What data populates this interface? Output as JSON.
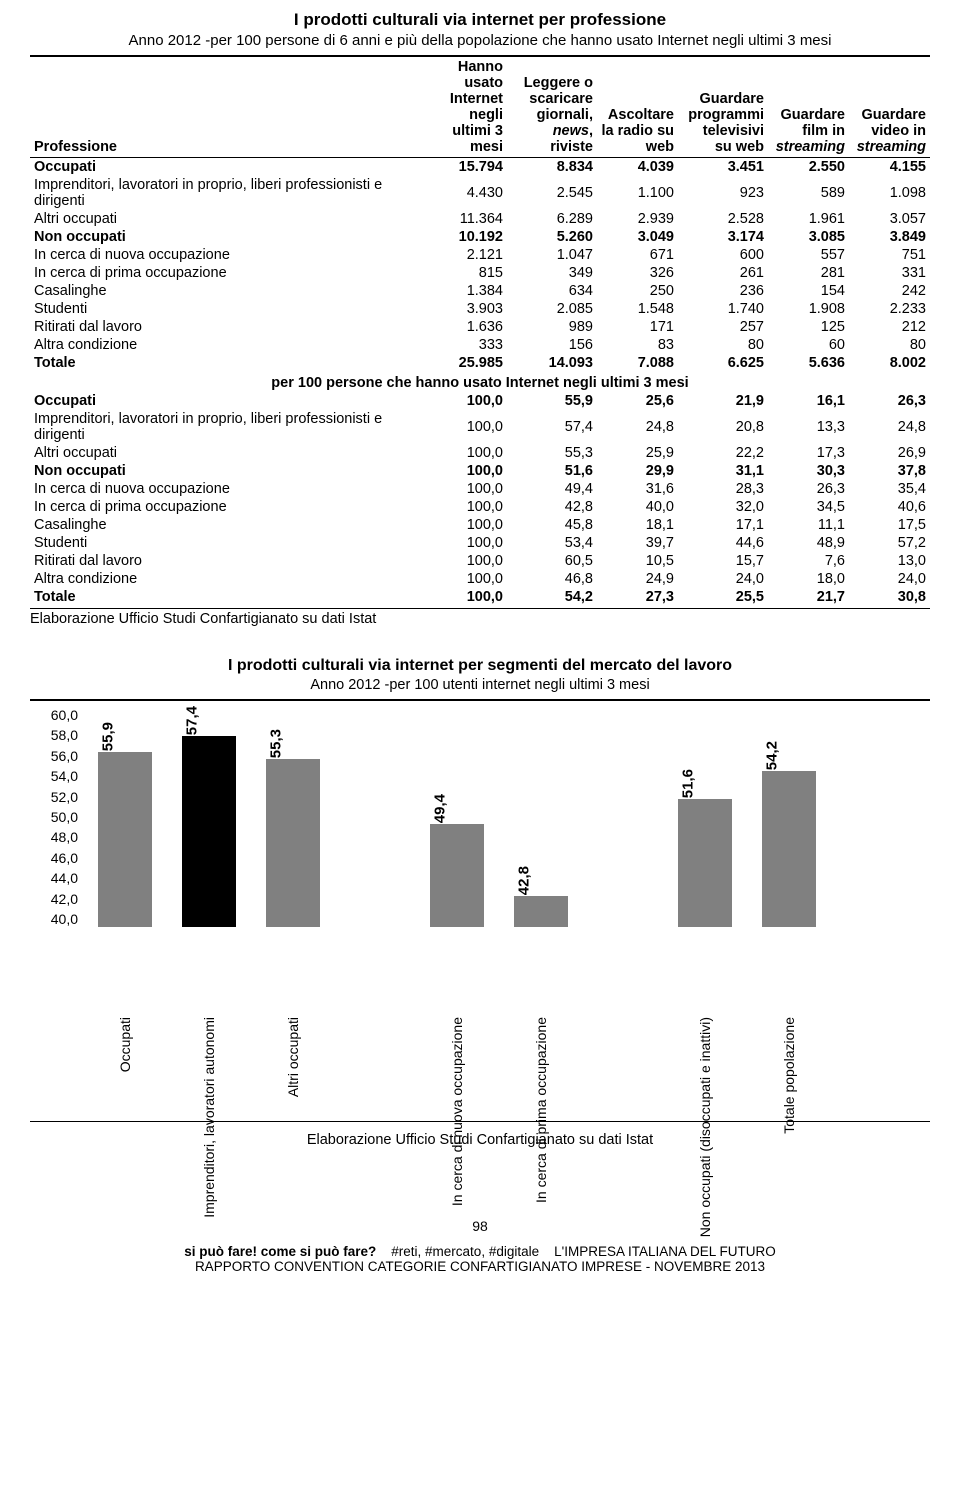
{
  "page": {
    "title": "I prodotti culturali via internet per professione",
    "subtitle": "Anno 2012 -per 100 persone di 6 anni e più della popolazione che hanno usato Internet negli ultimi 3 mesi",
    "headers": [
      "Professione",
      "Hanno usato Internet negli ultimi 3 mesi",
      "Leggere o scaricare giornali, news, riviste",
      "Ascoltare la radio su web",
      "Guardare programmi televisivi su web",
      "Guardare film in streaming",
      "Guardare video in streaming"
    ],
    "header_styles": [
      "",
      "",
      "",
      "",
      "",
      "italic",
      "italic"
    ],
    "section_title": "per 100 persone che hanno usato Internet negli ultimi 3 mesi",
    "rows_abs": [
      {
        "bold": true,
        "cells": [
          "Occupati",
          "15.794",
          "8.834",
          "4.039",
          "3.451",
          "2.550",
          "4.155"
        ]
      },
      {
        "bold": false,
        "cells": [
          "Imprenditori, lavoratori in proprio, liberi  professionisti e dirigenti",
          "4.430",
          "2.545",
          "1.100",
          "923",
          "589",
          "1.098"
        ]
      },
      {
        "bold": false,
        "cells": [
          "Altri occupati",
          "11.364",
          "6.289",
          "2.939",
          "2.528",
          "1.961",
          "3.057"
        ]
      },
      {
        "bold": true,
        "cells": [
          "Non occupati",
          "10.192",
          "5.260",
          "3.049",
          "3.174",
          "3.085",
          "3.849"
        ]
      },
      {
        "bold": false,
        "cells": [
          "In cerca di nuova occupazione",
          "2.121",
          "1.047",
          "671",
          "600",
          "557",
          "751"
        ]
      },
      {
        "bold": false,
        "cells": [
          "In cerca di prima occupazione",
          "815",
          "349",
          "326",
          "261",
          "281",
          "331"
        ]
      },
      {
        "bold": false,
        "cells": [
          "Casalinghe",
          "1.384",
          "634",
          "250",
          "236",
          "154",
          "242"
        ]
      },
      {
        "bold": false,
        "cells": [
          "Studenti",
          "3.903",
          "2.085",
          "1.548",
          "1.740",
          "1.908",
          "2.233"
        ]
      },
      {
        "bold": false,
        "cells": [
          "Ritirati dal lavoro",
          "1.636",
          "989",
          "171",
          "257",
          "125",
          "212"
        ]
      },
      {
        "bold": false,
        "cells": [
          "Altra condizione",
          "333",
          "156",
          "83",
          "80",
          "60",
          "80"
        ]
      },
      {
        "bold": true,
        "cells": [
          "Totale",
          "25.985",
          "14.093",
          "7.088",
          "6.625",
          "5.636",
          "8.002"
        ]
      }
    ],
    "rows_pct": [
      {
        "bold": true,
        "cells": [
          "Occupati",
          "100,0",
          "55,9",
          "25,6",
          "21,9",
          "16,1",
          "26,3"
        ]
      },
      {
        "bold": false,
        "cells": [
          "Imprenditori, lavoratori in proprio, liberi  professionisti e dirigenti",
          "100,0",
          "57,4",
          "24,8",
          "20,8",
          "13,3",
          "24,8"
        ]
      },
      {
        "bold": false,
        "cells": [
          "Altri occupati",
          "100,0",
          "55,3",
          "25,9",
          "22,2",
          "17,3",
          "26,9"
        ]
      },
      {
        "bold": true,
        "cells": [
          "Non occupati",
          "100,0",
          "51,6",
          "29,9",
          "31,1",
          "30,3",
          "37,8"
        ]
      },
      {
        "bold": false,
        "cells": [
          "In cerca di nuova occupazione",
          "100,0",
          "49,4",
          "31,6",
          "28,3",
          "26,3",
          "35,4"
        ]
      },
      {
        "bold": false,
        "cells": [
          "In cerca di prima occupazione",
          "100,0",
          "42,8",
          "40,0",
          "32,0",
          "34,5",
          "40,6"
        ]
      },
      {
        "bold": false,
        "cells": [
          "Casalinghe",
          "100,0",
          "45,8",
          "18,1",
          "17,1",
          "11,1",
          "17,5"
        ]
      },
      {
        "bold": false,
        "cells": [
          "Studenti",
          "100,0",
          "53,4",
          "39,7",
          "44,6",
          "48,9",
          "57,2"
        ]
      },
      {
        "bold": false,
        "cells": [
          "Ritirati dal lavoro",
          "100,0",
          "60,5",
          "10,5",
          "15,7",
          "7,6",
          "13,0"
        ]
      },
      {
        "bold": false,
        "cells": [
          "Altra condizione",
          "100,0",
          "46,8",
          "24,9",
          "24,0",
          "18,0",
          "24,0"
        ]
      },
      {
        "bold": true,
        "cells": [
          "Totale",
          "100,0",
          "54,2",
          "27,3",
          "25,5",
          "21,7",
          "30,8"
        ]
      }
    ],
    "source": "Elaborazione Ufficio Studi Confartigianato su dati Istat",
    "col_widths": [
      "44%",
      "9%",
      "10%",
      "9%",
      "10%",
      "9%",
      "9%"
    ]
  },
  "chart": {
    "title": "I prodotti culturali via internet per segmenti del mercato del lavoro",
    "subtitle": "Anno 2012 -per 100 utenti internet negli ultimi 3 mesi",
    "type": "bar",
    "ylim": [
      40.0,
      60.0
    ],
    "ytick_step": 2.0,
    "yticks": [
      "40,0",
      "42,0",
      "44,0",
      "46,0",
      "48,0",
      "50,0",
      "52,0",
      "54,0",
      "56,0",
      "58,0",
      "60,0"
    ],
    "bar_default_color": "#808080",
    "bar_highlight_color": "#000000",
    "background_color": "#ffffff",
    "bars": [
      {
        "label": "Occupati",
        "value": 55.9,
        "display": "55,9",
        "highlight": false,
        "gap_after": false
      },
      {
        "label": "Imprenditori, lavoratori autonomi",
        "value": 57.4,
        "display": "57,4",
        "highlight": true,
        "gap_after": false
      },
      {
        "label": "Altri occupati",
        "value": 55.3,
        "display": "55,3",
        "highlight": false,
        "gap_after": true
      },
      {
        "label": "In cerca di nuova occupazione",
        "value": 49.4,
        "display": "49,4",
        "highlight": false,
        "gap_after": false
      },
      {
        "label": "In cerca di prima occupazione",
        "value": 42.8,
        "display": "42,8",
        "highlight": false,
        "gap_after": true
      },
      {
        "label": "Non occupati (disoccupati e inattivi)",
        "value": 51.6,
        "display": "51,6",
        "highlight": false,
        "gap_after": false
      },
      {
        "label": "Totale popolazione",
        "value": 54.2,
        "display": "54,2",
        "highlight": false,
        "gap_after": false
      }
    ],
    "source": "Elaborazione Ufficio Studi Confartigianato su dati Istat"
  },
  "footer": {
    "page_number": "98",
    "line1_bold": "si può fare! come si può fare?",
    "line1_rest1": "#reti, #mercato, #digitale",
    "line1_rest2": "L'IMPRESA ITALIANA DEL FUTURO",
    "line2": "RAPPORTO CONVENTION CATEGORIE CONFARTIGIANATO IMPRESE - NOVEMBRE 2013"
  }
}
